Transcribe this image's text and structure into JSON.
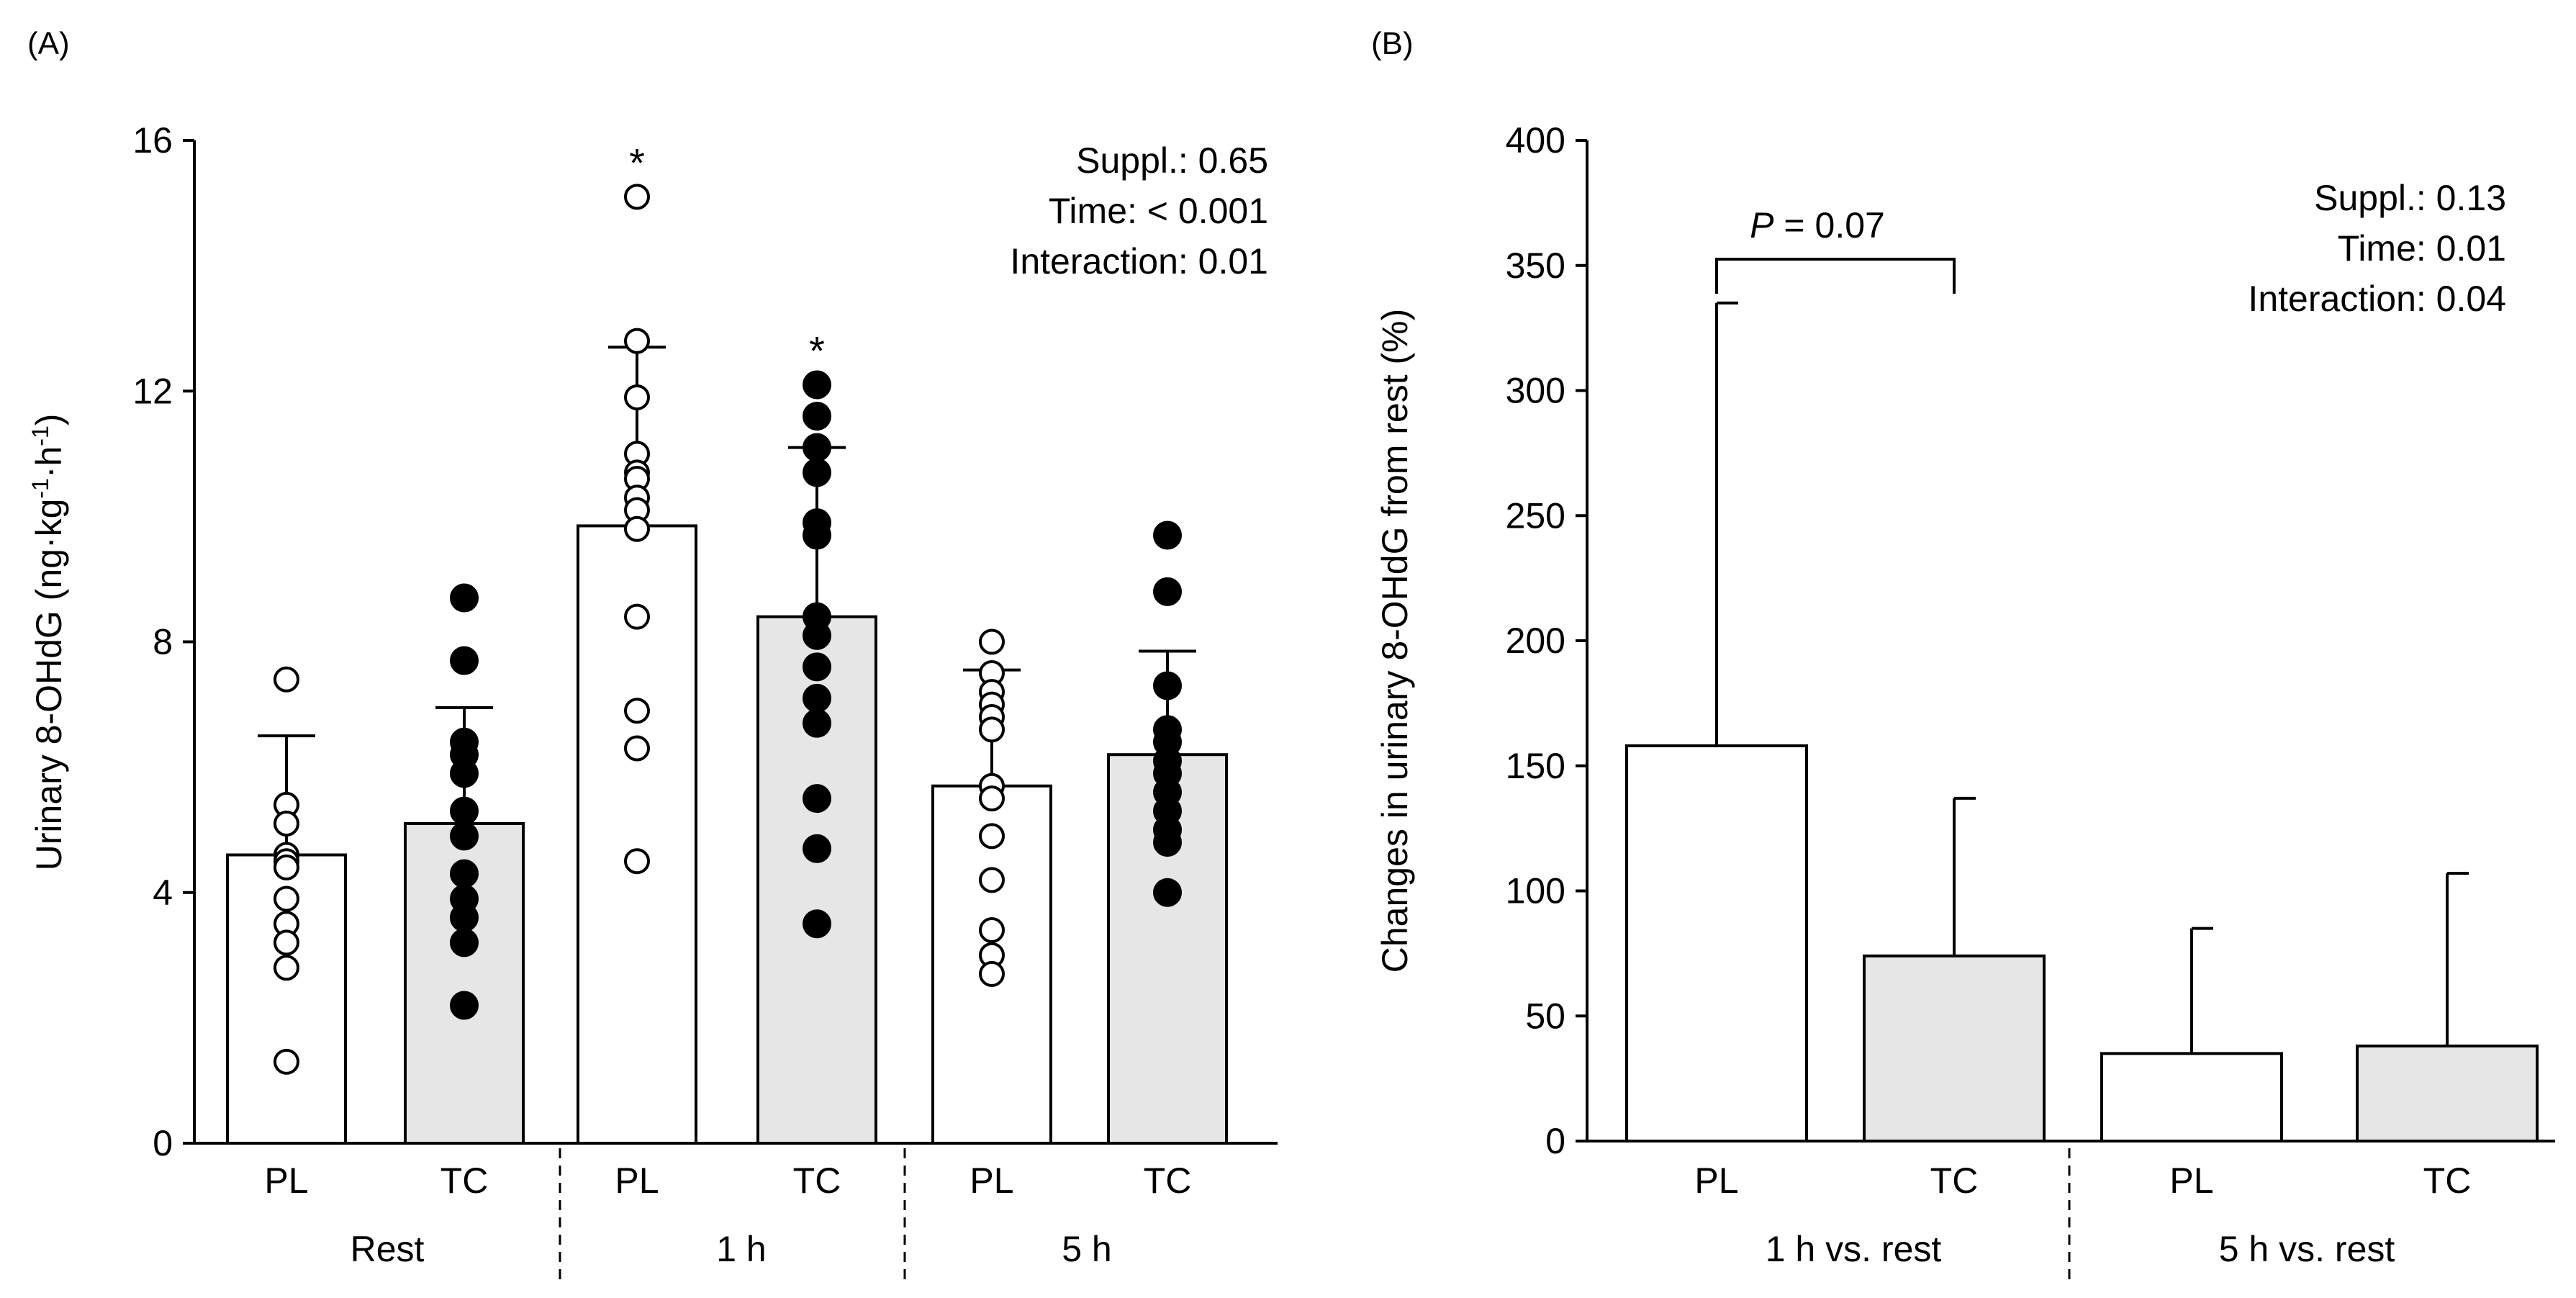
{
  "chart_data": [
    {
      "panel_label": "(A)",
      "type": "bar",
      "ylabel": "Urinary 8-OHdG (ng·kg-1·h-1)",
      "ylabel_parts": [
        "Urinary 8-OHdG (ng·kg",
        "-1",
        "·h",
        "-1",
        ")"
      ],
      "ylim": [
        0,
        16
      ],
      "yticks": [
        0,
        4,
        8,
        12,
        16
      ],
      "stats": [
        "Suppl.: 0.65",
        "Time: < 0.001",
        "Interaction: 0.01"
      ],
      "groups": [
        "Rest",
        "1 h",
        "5 h"
      ],
      "categories": [
        "PL",
        "TC",
        "PL",
        "TC",
        "PL",
        "TC"
      ],
      "bars": [
        {
          "group": "Rest",
          "label": "PL",
          "mean": 4.6,
          "sd_upper": 6.5,
          "fill": "#ffffff",
          "marker": "open",
          "sig": "",
          "points": [
            7.4,
            5.4,
            5.1,
            4.6,
            4.5,
            4.4,
            3.9,
            3.5,
            3.2,
            2.8,
            1.3
          ]
        },
        {
          "group": "Rest",
          "label": "TC",
          "mean": 5.1,
          "sd_upper": 6.95,
          "fill": "#e6e6e6",
          "marker": "filled",
          "sig": "",
          "points": [
            8.7,
            7.7,
            6.4,
            6.2,
            5.9,
            5.3,
            4.9,
            4.3,
            3.9,
            3.6,
            3.2,
            2.2
          ]
        },
        {
          "group": "1 h",
          "label": "PL",
          "mean": 9.85,
          "sd_upper": 12.7,
          "fill": "#ffffff",
          "marker": "open",
          "sig": "*",
          "points": [
            15.1,
            12.8,
            11.9,
            11.0,
            10.7,
            10.6,
            10.3,
            10.1,
            9.8,
            8.4,
            6.9,
            6.3,
            4.5
          ]
        },
        {
          "group": "1 h",
          "label": "TC",
          "mean": 8.4,
          "sd_upper": 11.1,
          "fill": "#e6e6e6",
          "marker": "filled",
          "sig": "*",
          "points": [
            12.1,
            11.6,
            11.1,
            10.7,
            9.9,
            9.7,
            8.4,
            8.1,
            7.6,
            7.1,
            6.7,
            5.5,
            4.7,
            3.5
          ]
        },
        {
          "group": "5 h",
          "label": "PL",
          "mean": 5.7,
          "sd_upper": 7.55,
          "fill": "#ffffff",
          "marker": "open",
          "sig": "",
          "points": [
            8.0,
            7.5,
            7.2,
            7.0,
            6.8,
            6.6,
            5.7,
            5.5,
            4.9,
            4.2,
            3.4,
            3.0,
            2.7
          ]
        },
        {
          "group": "5 h",
          "label": "TC",
          "mean": 6.2,
          "sd_upper": 7.85,
          "fill": "#e6e6e6",
          "marker": "filled",
          "sig": "",
          "points": [
            9.7,
            8.8,
            7.3,
            6.6,
            6.4,
            6.1,
            5.9,
            5.6,
            5.3,
            5.0,
            4.8,
            4.0
          ]
        }
      ]
    },
    {
      "panel_label": "(B)",
      "type": "bar",
      "ylabel": "Changes in urinary 8-OHdG from rest (%)",
      "ylim": [
        0,
        400
      ],
      "yticks": [
        0,
        50,
        100,
        150,
        200,
        250,
        300,
        350,
        400
      ],
      "stats": [
        "Suppl.: 0.13",
        "Time: 0.01",
        "Interaction: 0.04"
      ],
      "groups": [
        "1 h vs. rest",
        "5 h vs. rest"
      ],
      "categories": [
        "PL",
        "TC",
        "PL",
        "TC"
      ],
      "bars": [
        {
          "group": "1 h vs. rest",
          "label": "PL",
          "mean": 158,
          "sd_upper": 335,
          "fill": "#ffffff"
        },
        {
          "group": "1 h vs. rest",
          "label": "TC",
          "mean": 74,
          "sd_upper": 137,
          "fill": "#e6e6e6"
        },
        {
          "group": "5 h vs. rest",
          "label": "PL",
          "mean": 35,
          "sd_upper": 85,
          "fill": "#ffffff"
        },
        {
          "group": "5 h vs. rest",
          "label": "TC",
          "mean": 38,
          "sd_upper": 107,
          "fill": "#e6e6e6"
        }
      ],
      "bracket": {
        "between": [
          0,
          1
        ],
        "label_italic": "P",
        "label_rest": " = 0.07"
      }
    }
  ]
}
